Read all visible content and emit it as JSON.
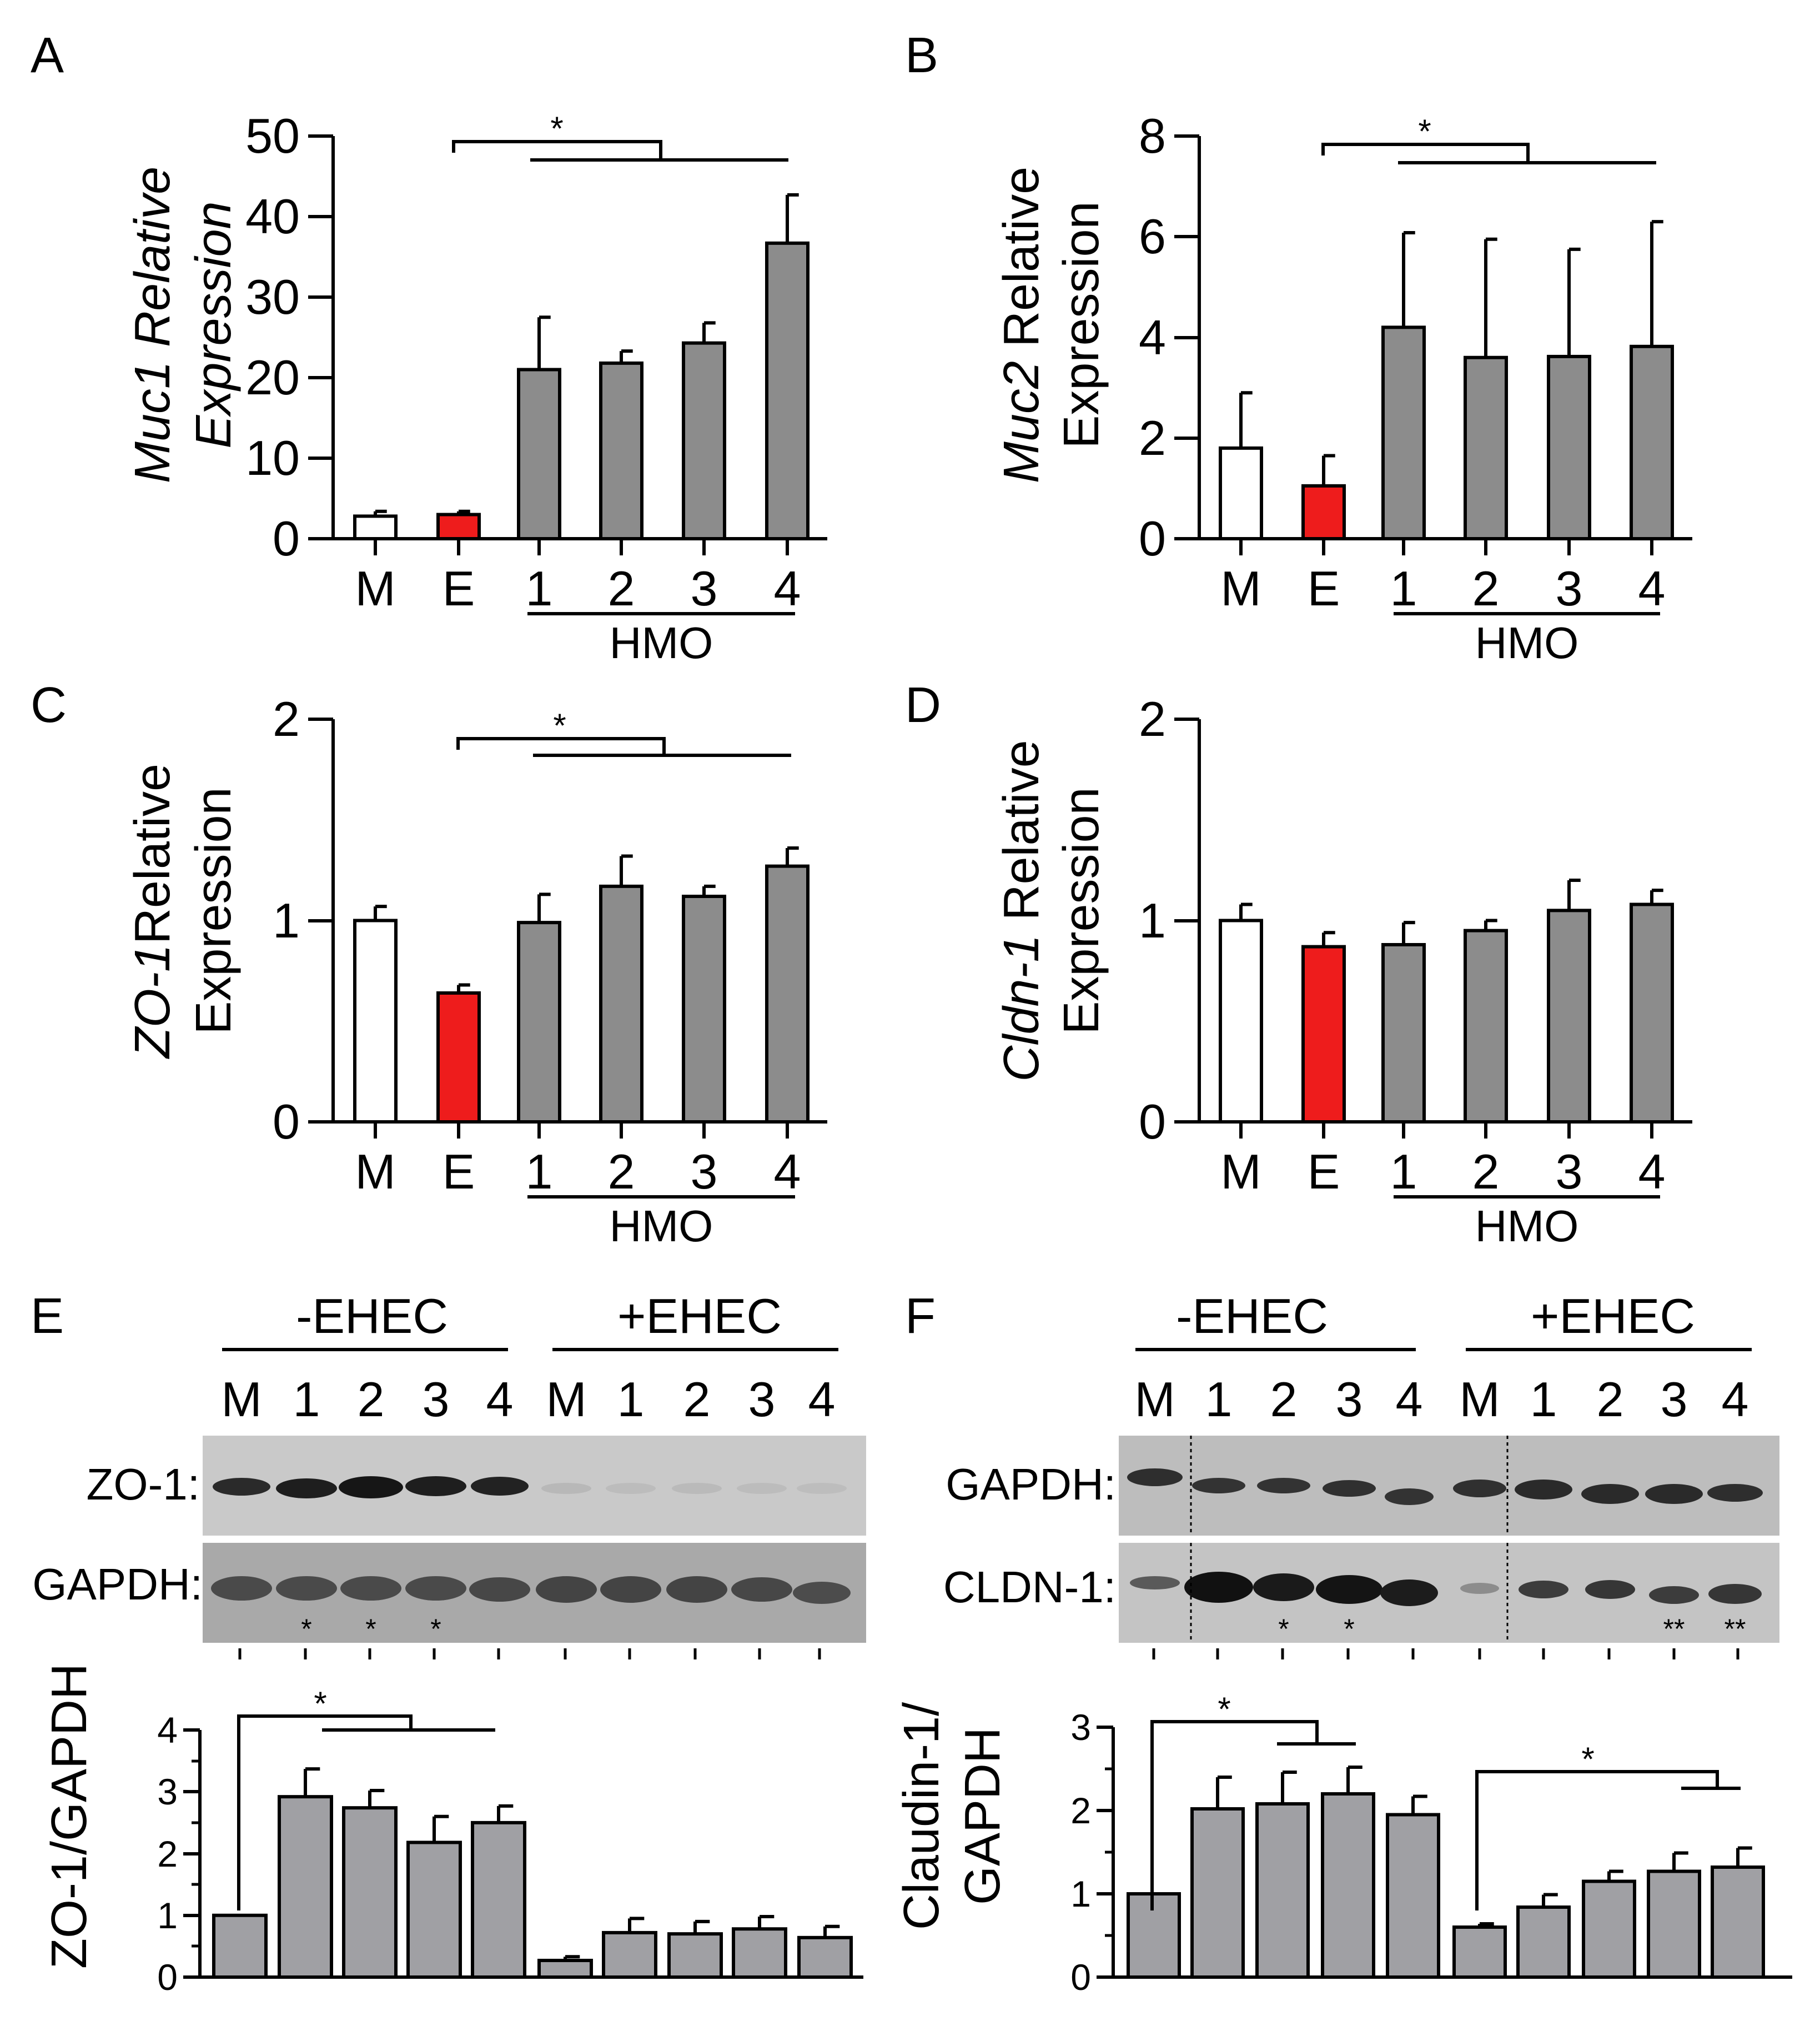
{
  "chart_data": [
    {
      "panel": "A",
      "type": "bar",
      "ylabel_italic": "Muc1 Relative",
      "ylabel_line2": "Expression",
      "ylim": [
        0,
        50
      ],
      "yticks": [
        "0",
        "10",
        "20",
        "30",
        "40",
        "50"
      ],
      "categories": [
        "M",
        "E",
        "1",
        "2",
        "3",
        "4"
      ],
      "values": [
        2.8,
        3.0,
        21.0,
        21.8,
        24.3,
        36.7
      ],
      "errors": [
        0.6,
        0.4,
        6.5,
        1.5,
        2.5,
        6.0
      ],
      "group_label": "HMO",
      "significance": "*"
    },
    {
      "panel": "B",
      "type": "bar",
      "ylabel_italic": "Muc2",
      "ylabel_plain": "Relative",
      "ylabel_line2": "Expression",
      "ylim": [
        0,
        8
      ],
      "yticks": [
        "0",
        "2",
        "4",
        "6",
        "8"
      ],
      "categories": [
        "M",
        "E",
        "1",
        "2",
        "3",
        "4"
      ],
      "values": [
        1.8,
        1.05,
        4.2,
        3.6,
        3.62,
        3.82
      ],
      "errors": [
        1.1,
        0.6,
        1.88,
        2.35,
        2.13,
        2.48
      ],
      "group_label": "HMO",
      "significance": "*"
    },
    {
      "panel": "C",
      "type": "bar",
      "ylabel_italic": "ZO-1",
      "ylabel_plain": "Relative",
      "ylabel_line2": "Expression",
      "ylim": [
        0,
        2
      ],
      "yticks": [
        "0",
        "1",
        "2"
      ],
      "categories": [
        "M",
        "E",
        "1",
        "2",
        "3",
        "4"
      ],
      "values": [
        1.0,
        0.64,
        0.99,
        1.17,
        1.12,
        1.27
      ],
      "errors": [
        0.07,
        0.04,
        0.14,
        0.15,
        0.05,
        0.09
      ],
      "group_label": "HMO",
      "significance": "*"
    },
    {
      "panel": "D",
      "type": "bar",
      "ylabel_italic": "Cldn-1",
      "ylabel_plain": "Relative",
      "ylabel_line2": "Expression",
      "ylim": [
        0,
        2
      ],
      "yticks": [
        "0",
        "1",
        "2"
      ],
      "categories": [
        "M",
        "E",
        "1",
        "2",
        "3",
        "4"
      ],
      "values": [
        1.0,
        0.87,
        0.88,
        0.95,
        1.05,
        1.08
      ],
      "errors": [
        0.08,
        0.07,
        0.11,
        0.05,
        0.15,
        0.07
      ],
      "group_label": "HMO"
    },
    {
      "panel": "E",
      "type": "bar",
      "ylabel": "ZO-1/GAPDH",
      "ylim": [
        0,
        4
      ],
      "yticks": [
        "0",
        "1",
        "2",
        "3",
        "4"
      ],
      "groups": [
        "-EHEC",
        "+EHEC"
      ],
      "categories": [
        "M",
        "1",
        "2",
        "3",
        "4",
        "M",
        "1",
        "2",
        "3",
        "4"
      ],
      "values": [
        1.0,
        2.92,
        2.74,
        2.18,
        2.5,
        0.27,
        0.72,
        0.7,
        0.78,
        0.64
      ],
      "errors": [
        0.0,
        0.45,
        0.28,
        0.42,
        0.27,
        0.06,
        0.23,
        0.2,
        0.2,
        0.18
      ],
      "blot_labels": [
        "ZO-1:",
        "GAPDH:"
      ],
      "blot_marks": [
        "*",
        "*",
        "*"
      ],
      "significance": "*"
    },
    {
      "panel": "F",
      "type": "bar",
      "ylabel": "Claudin-1/",
      "ylabel_line2": "GAPDH",
      "ylim": [
        0,
        3
      ],
      "yticks": [
        "0",
        "1",
        "2",
        "3"
      ],
      "groups": [
        "-EHEC",
        "+EHEC"
      ],
      "categories": [
        "M",
        "1",
        "2",
        "3",
        "4",
        "M",
        "1",
        "2",
        "3",
        "4"
      ],
      "values": [
        1.0,
        2.02,
        2.08,
        2.2,
        1.95,
        0.6,
        0.84,
        1.15,
        1.27,
        1.32
      ],
      "errors": [
        0.0,
        0.38,
        0.38,
        0.32,
        0.22,
        0.04,
        0.15,
        0.12,
        0.22,
        0.23
      ],
      "blot_labels": [
        "GAPDH:",
        "CLDN-1:"
      ],
      "blot_marks": [
        "*",
        "*",
        "**",
        "**"
      ],
      "significance": [
        "*",
        "*"
      ]
    }
  ],
  "colors": {
    "mock": "#ffffff",
    "ehec": "#ee1c1c",
    "hmo": "#8c8c8c",
    "blot_bars": "#a0a0a4"
  }
}
